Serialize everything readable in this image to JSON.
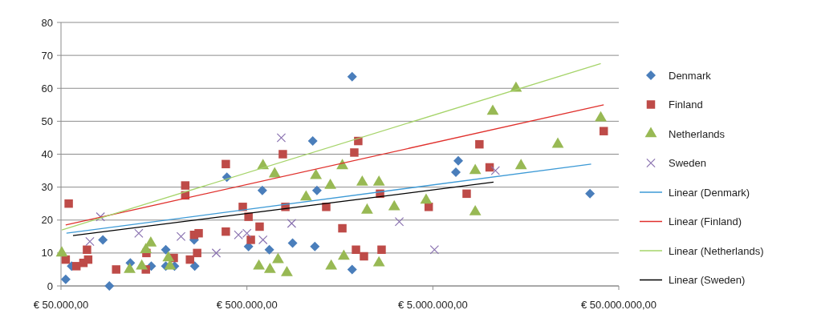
{
  "chart_data": {
    "type": "scatter",
    "log": "x",
    "grid": "y",
    "legend": "right",
    "xlim": [
      50000,
      50000000
    ],
    "xticks": [
      {
        "value": 50000,
        "label": "€ 50.000,00"
      },
      {
        "value": 500000,
        "label": "€ 500.000,00"
      },
      {
        "value": 5000000,
        "label": "€ 5.000.000,00"
      },
      {
        "value": 50000000,
        "label": "€ 50.000.000,00"
      }
    ],
    "ylim": [
      0,
      80
    ],
    "yticks": [
      0,
      10,
      20,
      30,
      40,
      50,
      60,
      70,
      80
    ],
    "series": [
      {
        "name": "Denmark",
        "color": "#4a7ebb",
        "marker": "diamond",
        "x": [
          53000,
          57000,
          84000,
          91000,
          118000,
          153000,
          183000,
          183000,
          204000,
          262000,
          260000,
          390000,
          510000,
          605000,
          660000,
          880000,
          1130000,
          1190000,
          1160000,
          1840000,
          1840000,
          6850000,
          6650000,
          35000000
        ],
        "values": [
          2,
          6,
          14,
          0,
          7,
          6,
          11,
          6,
          6,
          6,
          14,
          33,
          12,
          29,
          11,
          13,
          44,
          29,
          12,
          63.5,
          5,
          38,
          34.5,
          28
        ]
      },
      {
        "name": "Finland",
        "color": "#be4b48",
        "marker": "square",
        "x": [
          55000,
          53000,
          60500,
          66000,
          69000,
          70000,
          99000,
          143000,
          144000,
          202000,
          233000,
          233000,
          247000,
          270000,
          260000,
          275000,
          385000,
          385000,
          780000,
          475000,
          510000,
          585000,
          525000,
          805000,
          1335000,
          1630000,
          1985000,
          1890000,
          1930000,
          2130000,
          2600000,
          2650000,
          4750000,
          8900000,
          10100000,
          7600000,
          41500000
        ],
        "values": [
          25,
          8,
          6,
          7,
          11,
          8,
          5,
          5,
          10,
          8.5,
          30.5,
          27.5,
          8,
          10,
          15.5,
          16,
          37,
          16.5,
          40,
          24,
          21,
          18,
          14,
          24,
          24,
          17.5,
          44,
          40.5,
          11,
          9,
          28,
          11,
          24,
          43,
          36,
          28,
          47
        ]
      },
      {
        "name": "Netherlands",
        "color": "#98b954",
        "marker": "triangle",
        "x": [
          50500,
          117000,
          136000,
          143000,
          152000,
          189000,
          193000,
          610000,
          705000,
          580000,
          665000,
          735000,
          820000,
          1040000,
          1175000,
          1405000,
          1420000,
          1660000,
          1630000,
          2085000,
          2565000,
          2215000,
          2565000,
          3100000,
          4600000,
          8450000,
          8450000,
          10500000,
          14000000,
          14900000,
          23500000,
          40000000
        ],
        "values": [
          10,
          5,
          6,
          11,
          13,
          8.5,
          6,
          36.5,
          34,
          6,
          5,
          8,
          4,
          27,
          33.5,
          30.5,
          6,
          9,
          36.5,
          31.5,
          31.5,
          23,
          7,
          24,
          26,
          22.5,
          35,
          53,
          60,
          36.5,
          43,
          51
        ]
      },
      {
        "name": "Sweden",
        "color": "#8a72b0",
        "marker": "cross",
        "x": [
          71500,
          81500,
          131000,
          221000,
          342000,
          450000,
          500000,
          610000,
          765000,
          870000,
          3300000,
          5100000,
          10850000
        ],
        "values": [
          13.5,
          21,
          16,
          15,
          10,
          15.5,
          16,
          14,
          45,
          19,
          19.5,
          11,
          35
        ]
      },
      {
        "name": "Linear (Denmark)",
        "type": "line",
        "color": "#3d9ad6",
        "marker": "none",
        "line_style": "solid",
        "x": [
          53500,
          35500000
        ],
        "values": [
          16,
          37
        ]
      },
      {
        "name": "Linear (Finland)",
        "type": "line",
        "color": "#e0302c",
        "marker": "none",
        "line_style": "solid",
        "x": [
          53000,
          41500000
        ],
        "values": [
          18.5,
          55
        ]
      },
      {
        "name": "Linear (Netherlands)",
        "type": "line",
        "color": "#a6d46a",
        "marker": "none",
        "line_style": "solid",
        "x": [
          50500,
          40000000
        ],
        "values": [
          17,
          67.5
        ]
      },
      {
        "name": "Linear (Sweden)",
        "type": "line",
        "color": "#000000",
        "marker": "none",
        "line_style": "solid",
        "x": [
          58000,
          10600000
        ],
        "values": [
          15.3,
          31.5
        ]
      }
    ]
  }
}
